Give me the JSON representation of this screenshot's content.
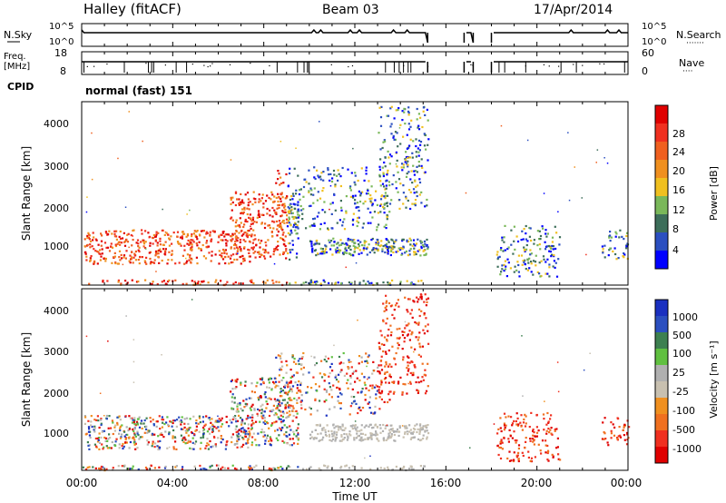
{
  "header": {
    "station": "Halley (fitACF)",
    "beam": "Beam 03",
    "date": "17/Apr/2014",
    "cpid_label": "CPID",
    "cpid_value": "normal (fast) 151"
  },
  "colors": {
    "power_scale": [
      "#0000ff",
      "#2b4fc0",
      "#3d6e5a",
      "#7ab85a",
      "#f0c020",
      "#f09020",
      "#f06020",
      "#f03020",
      "#e00000"
    ],
    "velocity_scale": [
      "#e00000",
      "#f03020",
      "#f07020",
      "#f09020",
      "#c8c0b0",
      "#b0b0b0",
      "#60c040",
      "#3d8050",
      "#2b4fc0",
      "#1a30c0"
    ]
  },
  "chart_data": [
    {
      "type": "line",
      "panel": "noise",
      "left_label": "N.Sky",
      "right_label": "N.Search",
      "right_legend": "·······",
      "left_ticks": [
        "10^5",
        "10^0"
      ],
      "right_ticks": [
        "10^5",
        "10^0"
      ],
      "x_ticks": [
        "00:00",
        "04:00",
        "08:00",
        "12:00",
        "16:00",
        "20:00",
        "00:00"
      ],
      "data_gaps_ut": [
        [
          15.2,
          16.8
        ],
        [
          17.2,
          18.0
        ]
      ]
    },
    {
      "type": "line",
      "panel": "frequency",
      "left_label": "Freq.",
      "left_unit": "[MHz]",
      "right_label": "Nave",
      "right_legend": "····",
      "left_ticks": [
        "18",
        "8"
      ],
      "right_ticks": [
        "60",
        "0"
      ],
      "data_gaps_ut": [
        [
          15.2,
          16.8
        ],
        [
          17.2,
          18.0
        ]
      ]
    },
    {
      "type": "heatmap",
      "panel": "power",
      "ylabel": "Slant Range [km]",
      "y_ticks": [
        "4000",
        "3000",
        "2000",
        "1000"
      ],
      "ylim": [
        180,
        4500
      ],
      "xlim": [
        0,
        24
      ],
      "colorbar_label": "Power [dB]",
      "colorbar_ticks": [
        "28",
        "24",
        "20",
        "16",
        "12",
        "8",
        "4"
      ]
    },
    {
      "type": "heatmap",
      "panel": "velocity",
      "ylabel": "Slant Range [km]",
      "y_ticks": [
        "4000",
        "3000",
        "2000",
        "1000"
      ],
      "ylim": [
        180,
        4500
      ],
      "xlim": [
        0,
        24
      ],
      "xlabel": "Time UT",
      "x_ticks": [
        "00:00",
        "04:00",
        "08:00",
        "12:00",
        "16:00",
        "20:00",
        "00:00"
      ],
      "colorbar_label": "Velocity [m s⁻¹]",
      "colorbar_ticks": [
        "1000",
        "500",
        "100",
        "25",
        "-25",
        "-100",
        "-500",
        "-1000"
      ]
    }
  ]
}
